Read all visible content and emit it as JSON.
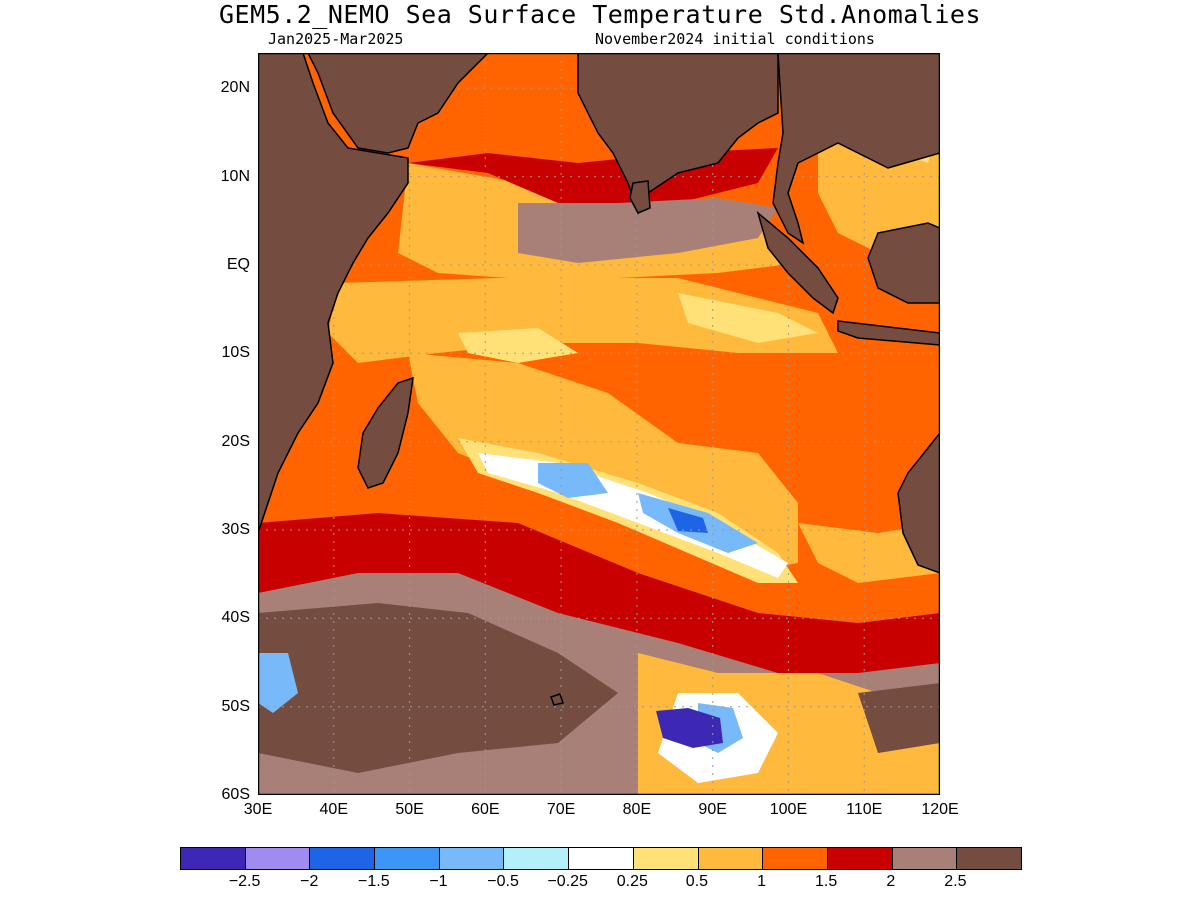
{
  "header": {
    "title": "GEM5.2_NEMO Sea Surface Temperature Std.Anomalies",
    "period": "Jan2025-Mar2025",
    "init": "November2024 initial conditions"
  },
  "map": {
    "lon_range": [
      30,
      120
    ],
    "lat_range": [
      -60,
      24
    ],
    "lat_ticks": [
      "20N",
      "10N",
      "EQ",
      "10S",
      "20S",
      "30S",
      "40S",
      "50S",
      "60S"
    ],
    "lat_values": [
      20,
      10,
      0,
      -10,
      -20,
      -30,
      -40,
      -50,
      -60
    ],
    "lon_ticks": [
      "30E",
      "40E",
      "50E",
      "60E",
      "70E",
      "80E",
      "90E",
      "100E",
      "110E",
      "120E"
    ],
    "lon_values": [
      30,
      40,
      50,
      60,
      70,
      80,
      90,
      100,
      110,
      120
    ],
    "grid": true,
    "land_color": "#754c40"
  },
  "colorbar": {
    "colors": [
      "#3c28b4",
      "#a08cf0",
      "#1e64e6",
      "#3c96f5",
      "#78b9fa",
      "#b4f0fa",
      "#ffffff",
      "#ffe178",
      "#ffb93c",
      "#ff6400",
      "#c80000",
      "#a88078",
      "#754c40"
    ],
    "labels": [
      "−2.5",
      "−2",
      "−1.5",
      "−1",
      "−0.5",
      "−0.25",
      "0.25",
      "0.5",
      "1",
      "1.5",
      "2",
      "2.5"
    ]
  }
}
